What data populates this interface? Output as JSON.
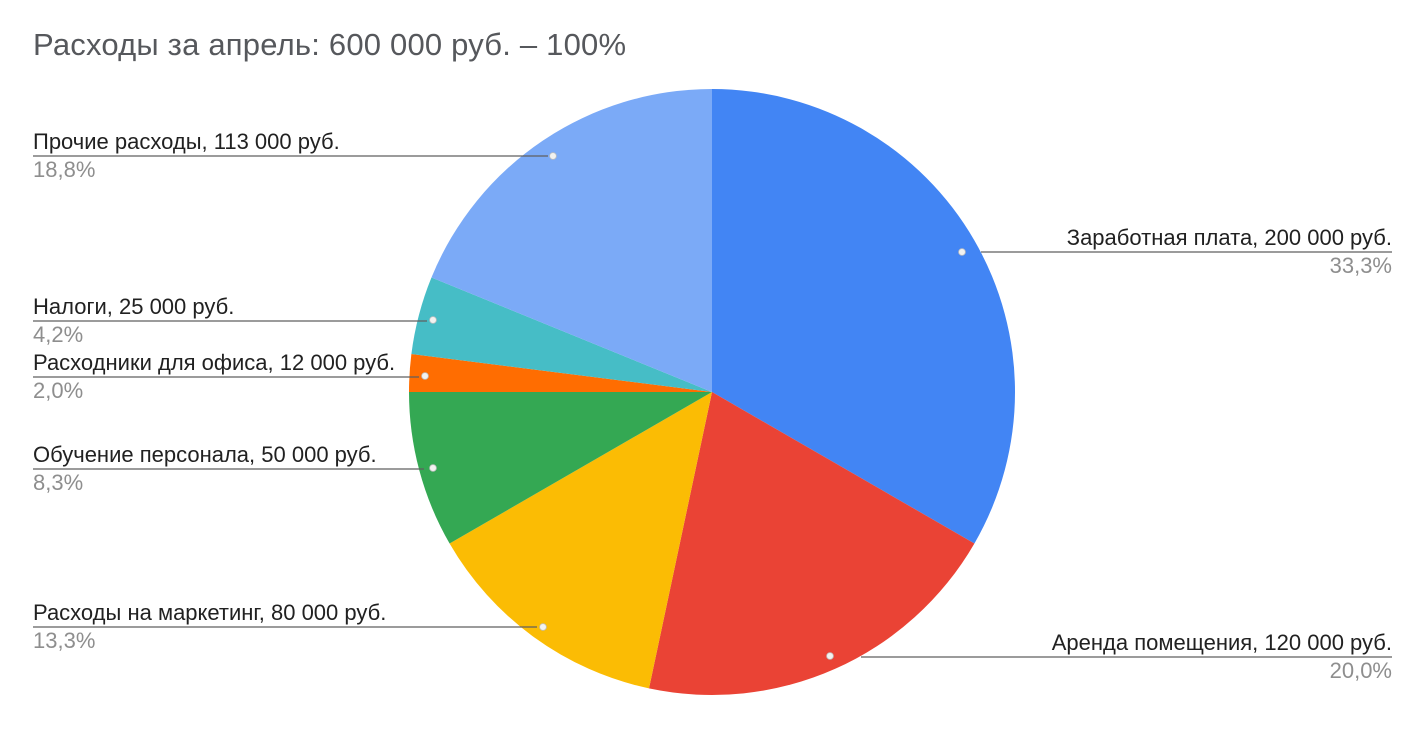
{
  "title": "Расходы за апрель: 600 000 руб. – 100%",
  "chart_data": {
    "type": "pie",
    "title": "Расходы за апрель: 600 000 руб. – 100%",
    "total": 600000,
    "total_text": "600 000 руб.",
    "total_percent_text": "100%",
    "currency": "руб.",
    "direction": "clockwise",
    "start_angle_deg": 0,
    "legend_position": "outside-callout-labels",
    "slices": [
      {
        "name": "Заработная плата",
        "value": 200000,
        "label_text": "Заработная плата, 200 000 руб.",
        "percent_text": "33,3%",
        "percent": 33.3,
        "color": "#4285F4",
        "side": "right"
      },
      {
        "name": "Аренда помещения",
        "value": 120000,
        "label_text": "Аренда помещения, 120 000 руб.",
        "percent_text": "20,0%",
        "percent": 20.0,
        "color": "#EA4335",
        "side": "right"
      },
      {
        "name": "Расходы на маркетинг",
        "value": 80000,
        "label_text": "Расходы на маркетинг, 80 000 руб.",
        "percent_text": "13,3%",
        "percent": 13.3,
        "color": "#FBBC04",
        "side": "left"
      },
      {
        "name": "Обучение персонала",
        "value": 50000,
        "label_text": "Обучение персонала, 50 000 руб.",
        "percent_text": "8,3%",
        "percent": 8.3,
        "color": "#34A853",
        "side": "left"
      },
      {
        "name": "Расходники для офиса",
        "value": 12000,
        "label_text": "Расходники для офиса, 12 000 руб.",
        "percent_text": "2,0%",
        "percent": 2.0,
        "color": "#FF6D01",
        "side": "left"
      },
      {
        "name": "Налоги",
        "value": 25000,
        "label_text": "Налоги, 25 000 руб.",
        "percent_text": "4,2%",
        "percent": 4.2,
        "color": "#46BDC6",
        "side": "left"
      },
      {
        "name": "Прочие расходы",
        "value": 113000,
        "label_text": "Прочие расходы, 113 000 руб.",
        "percent_text": "18,8%",
        "percent": 18.8,
        "color": "#7BAAF7",
        "side": "left"
      }
    ],
    "colors": {
      "title_text": "#56585c",
      "label_text": "#212121",
      "percent_text": "#8e8e8e",
      "leader_line": "#5f5f5f",
      "background": "#ffffff"
    }
  }
}
